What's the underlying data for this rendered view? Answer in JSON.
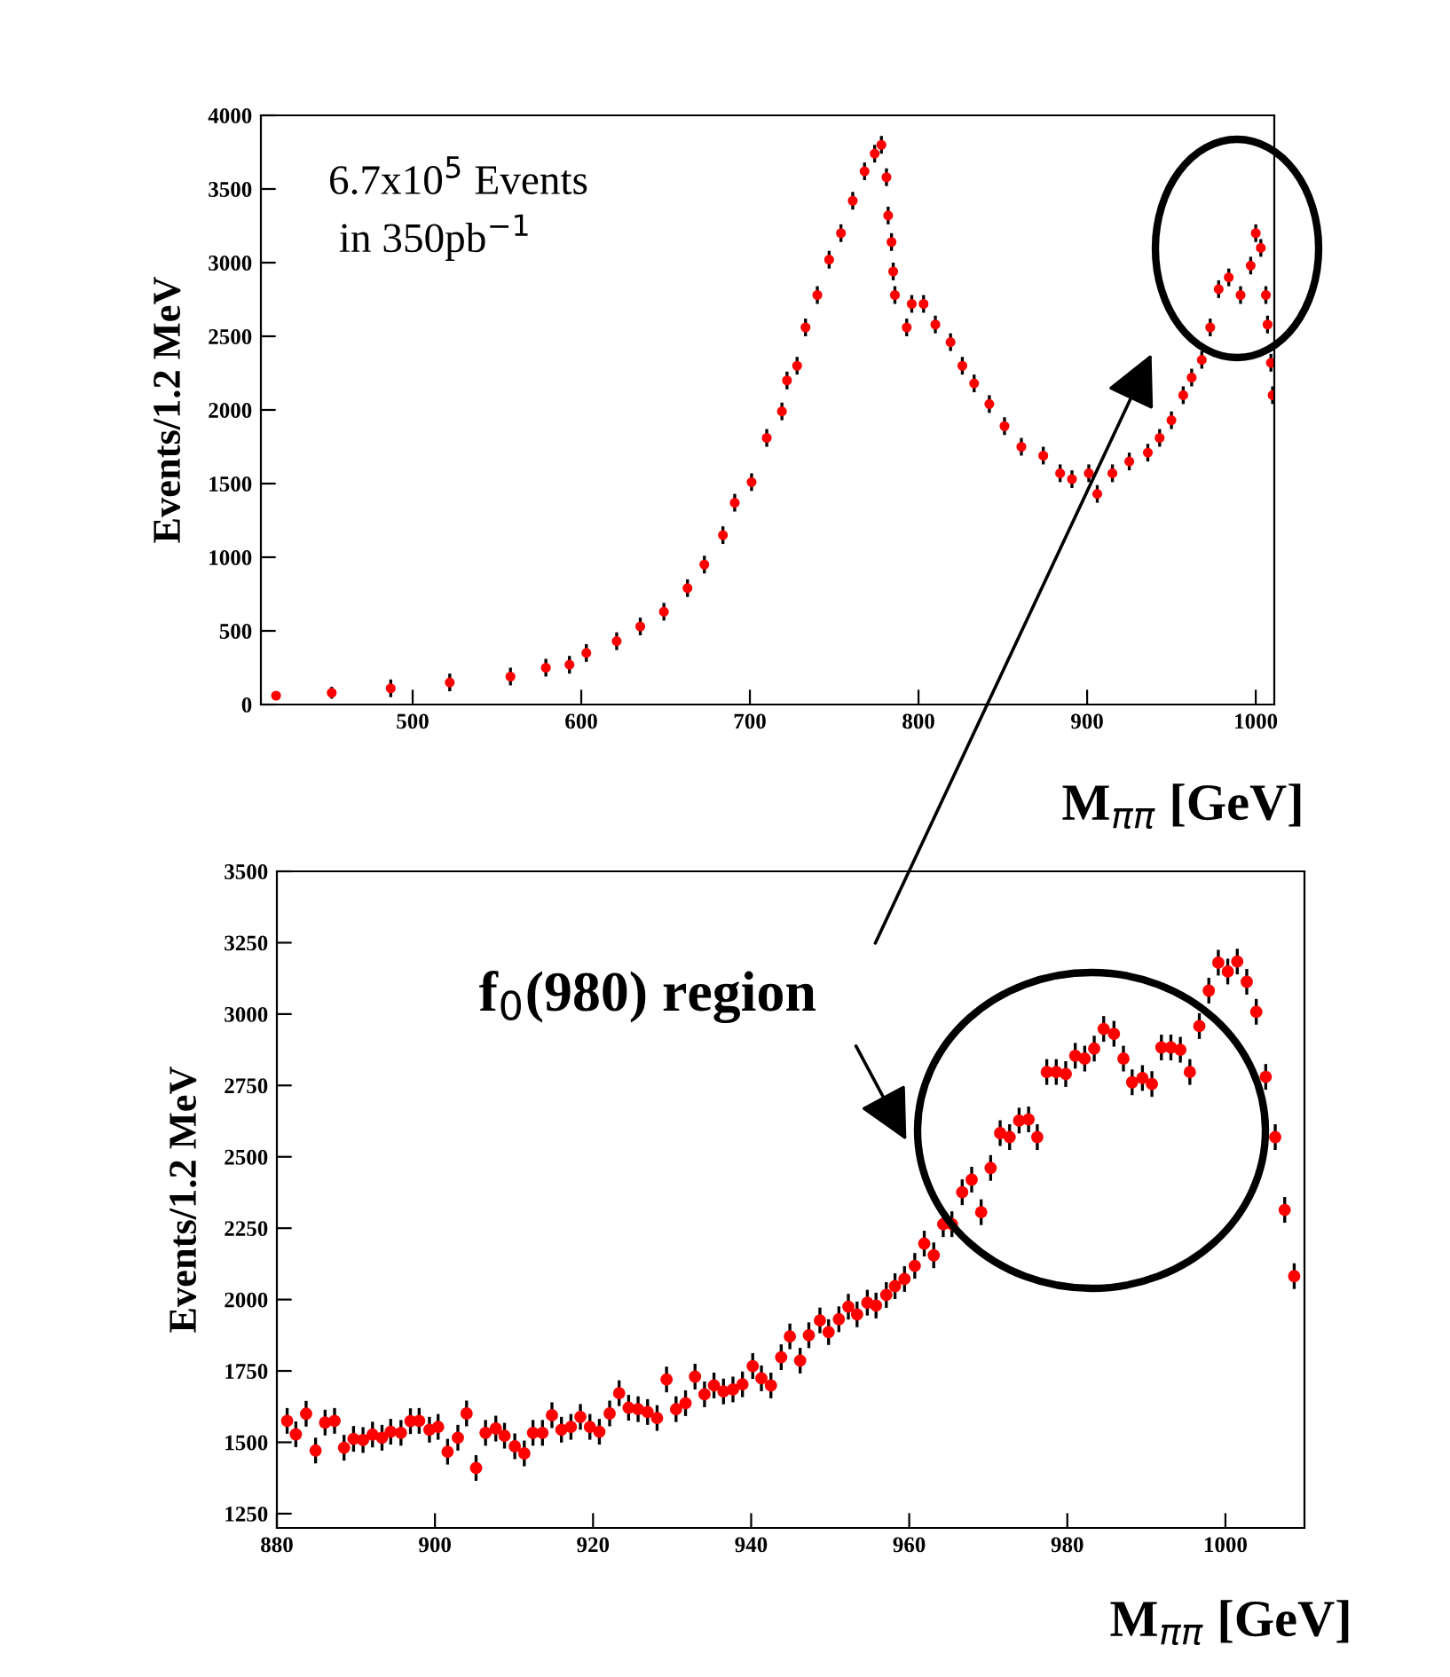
{
  "chart_data": [
    {
      "type": "scatter",
      "xlabel": "M$_{ππ}$ [GeV]",
      "ylabel": "Events/1.2 MeV",
      "marker": "circle",
      "annotations": [
        "6.7x10$^{5}$ Events\n in 350pb$^{−1}$"
      ],
      "xlim": [
        410,
        1011
      ],
      "ylim": [
        0,
        4000
      ],
      "xticks": [
        500,
        600,
        700,
        800,
        900,
        1000
      ],
      "yticks": [
        0,
        500,
        1000,
        1500,
        2000,
        2500,
        3000,
        3500,
        4000
      ],
      "series": [
        {
          "color": "#ff0000",
          "x": [
            419,
            452,
            487,
            522,
            558,
            579,
            593,
            603,
            621,
            635,
            649,
            663,
            673,
            684,
            691,
            701,
            710,
            719,
            722,
            728,
            733,
            740,
            747,
            754,
            761,
            768,
            774,
            778,
            781,
            782,
            784,
            785,
            786,
            793,
            796,
            803,
            810,
            819,
            826,
            833,
            842,
            851,
            861,
            874,
            884,
            891,
            901,
            906,
            915,
            925,
            936,
            943,
            950,
            957,
            962,
            968,
            973,
            978,
            984,
            991,
            997,
            1000,
            1003,
            1006,
            1007,
            1009,
            1010
          ],
          "values": [
            60,
            80,
            110,
            150,
            190,
            250,
            270,
            350,
            430,
            530,
            630,
            790,
            950,
            1150,
            1370,
            1510,
            1810,
            1990,
            2200,
            2300,
            2560,
            2780,
            3020,
            3200,
            3420,
            3620,
            3740,
            3800,
            3580,
            3320,
            3140,
            2940,
            2780,
            2560,
            2720,
            2720,
            2580,
            2460,
            2300,
            2180,
            2040,
            1890,
            1750,
            1690,
            1570,
            1530,
            1570,
            1430,
            1570,
            1650,
            1710,
            1810,
            1930,
            2100,
            2220,
            2340,
            2560,
            2820,
            2900,
            2780,
            2980,
            3200,
            3100,
            2780,
            2580,
            2320,
            2100
          ],
          "errors": [
            null,
            40,
            60,
            60,
            60,
            60,
            60,
            60,
            60,
            60,
            60,
            60,
            60,
            60,
            60,
            60,
            60,
            60,
            60,
            60,
            60,
            60,
            60,
            60,
            60,
            60,
            60,
            60,
            60,
            60,
            60,
            60,
            60,
            60,
            60,
            60,
            60,
            60,
            60,
            60,
            60,
            60,
            60,
            60,
            60,
            60,
            60,
            60,
            60,
            60,
            60,
            60,
            60,
            60,
            60,
            60,
            60,
            60,
            60,
            60,
            60,
            60,
            60,
            60,
            60,
            60,
            60
          ]
        }
      ]
    },
    {
      "type": "scatter",
      "xlabel": "M$_{ππ}$ [GeV]",
      "ylabel": "Events/1.2 MeV",
      "marker": "circle",
      "annotations": [
        "f$_{0}$(980) region"
      ],
      "xlim": [
        880,
        1010
      ],
      "ylim": [
        1200,
        3500
      ],
      "xticks": [
        880,
        900,
        920,
        940,
        960,
        980,
        1000
      ],
      "yticks": [
        1250,
        1500,
        1750,
        2000,
        2250,
        2500,
        2750,
        3000,
        3250,
        3500
      ],
      "series": [
        {
          "color": "#ff0000",
          "x": [
            881.3,
            882.4,
            883.7,
            884.9,
            886.1,
            887.3,
            888.5,
            889.7,
            890.9,
            892.1,
            893.3,
            894.4,
            895.7,
            896.9,
            898.0,
            899.3,
            900.4,
            901.6,
            902.9,
            904.0,
            905.2,
            906.4,
            907.7,
            908.8,
            910.1,
            911.3,
            912.4,
            913.6,
            914.8,
            916.0,
            917.2,
            918.4,
            919.6,
            920.8,
            922.1,
            923.3,
            924.5,
            925.7,
            926.9,
            928.1,
            929.3,
            930.5,
            931.7,
            932.9,
            934.1,
            935.3,
            936.5,
            937.7,
            938.9,
            940.2,
            941.3,
            942.5,
            943.8,
            944.9,
            946.2,
            947.3,
            948.7,
            949.8,
            951.1,
            952.3,
            953.4,
            954.7,
            955.8,
            957.1,
            958.2,
            959.4,
            960.7,
            961.9,
            963.1,
            964.3,
            965.4,
            966.7,
            967.9,
            969.1,
            970.3,
            971.5,
            972.7,
            973.9,
            975.1,
            976.2,
            977.4,
            978.6,
            979.8,
            981.0,
            982.2,
            983.4,
            984.6,
            985.9,
            987.1,
            988.2,
            989.5,
            990.7,
            991.9,
            993.1,
            994.3,
            995.5,
            996.7,
            997.9,
            999.1,
            1000.3,
            1001.5,
            1002.7,
            1003.9,
            1005.1,
            1006.3,
            1007.5,
            1008.7
          ],
          "values": [
            1575,
            1528,
            1600,
            1471,
            1569,
            1575,
            1481,
            1512,
            1508,
            1527,
            1516,
            1537,
            1533,
            1574,
            1575,
            1544,
            1554,
            1467,
            1516,
            1601,
            1410,
            1533,
            1548,
            1523,
            1486,
            1461,
            1533,
            1533,
            1595,
            1544,
            1554,
            1589,
            1554,
            1537,
            1601,
            1672,
            1621,
            1616,
            1606,
            1585,
            1720,
            1616,
            1637,
            1730,
            1668,
            1699,
            1678,
            1685,
            1703,
            1767,
            1724,
            1699,
            1798,
            1871,
            1786,
            1875,
            1927,
            1886,
            1931,
            1975,
            1948,
            1989,
            1979,
            2016,
            2047,
            2072,
            2118,
            2196,
            2155,
            2264,
            2264,
            2376,
            2420,
            2306,
            2461,
            2583,
            2569,
            2627,
            2631,
            2569,
            2797,
            2797,
            2790,
            2854,
            2844,
            2879,
            2948,
            2931,
            2844,
            2761,
            2776,
            2755,
            2883,
            2883,
            2875,
            2797,
            2958,
            3082,
            3180,
            3149,
            3184,
            3113,
            3008,
            2780,
            2569,
            2314,
            2082
          ],
          "errors": [
            45,
            45,
            45,
            45,
            45,
            45,
            45,
            45,
            45,
            45,
            45,
            45,
            45,
            45,
            45,
            45,
            45,
            45,
            45,
            45,
            45,
            45,
            45,
            45,
            45,
            45,
            45,
            45,
            45,
            45,
            45,
            45,
            45,
            45,
            45,
            45,
            45,
            45,
            45,
            45,
            45,
            45,
            45,
            45,
            45,
            45,
            45,
            45,
            45,
            45,
            45,
            45,
            45,
            45,
            45,
            45,
            45,
            45,
            45,
            45,
            45,
            45,
            45,
            45,
            45,
            45,
            45,
            45,
            45,
            45,
            45,
            45,
            45,
            45,
            45,
            45,
            45,
            45,
            45,
            45,
            45,
            45,
            45,
            45,
            45,
            45,
            45,
            45,
            45,
            45,
            45,
            45,
            45,
            45,
            45,
            45,
            45,
            45,
            45,
            45,
            45,
            45,
            45,
            45,
            45,
            45,
            45
          ]
        }
      ]
    }
  ]
}
